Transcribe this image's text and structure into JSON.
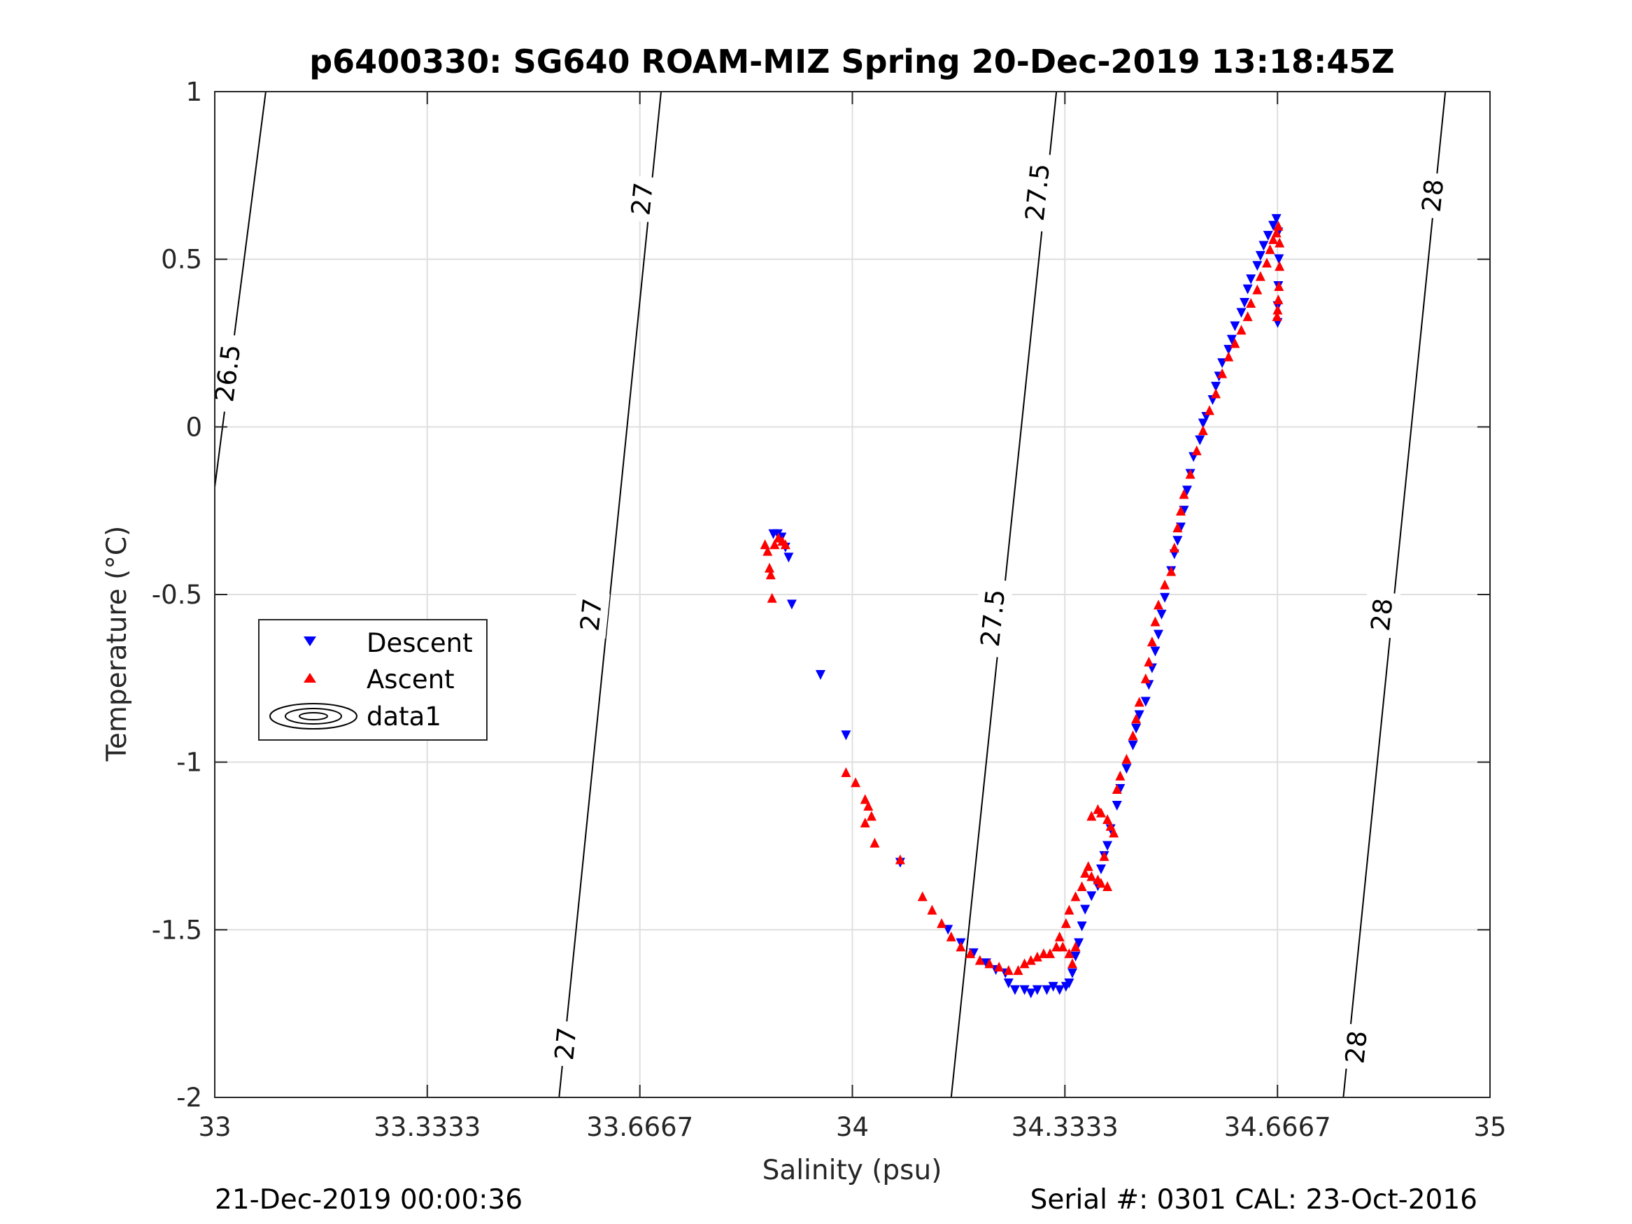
{
  "chart_data": {
    "type": "scatter",
    "title": "p6400330: SG640 ROAM-MIZ Spring 20-Dec-2019 13:18:45Z",
    "xlabel": "Salinity (psu)",
    "ylabel": "Temperature (°C)",
    "xlim": [
      33,
      35
    ],
    "ylim": [
      -2,
      1
    ],
    "xticks": [
      33,
      33.3333,
      33.6667,
      34,
      34.3333,
      34.6667,
      35
    ],
    "xtick_labels": [
      "33",
      "33.3333",
      "33.6667",
      "34",
      "34.3333",
      "34.6667",
      "35"
    ],
    "yticks": [
      -2,
      -1.5,
      -1,
      -0.5,
      0,
      0.5,
      1
    ],
    "ytick_labels": [
      "-2",
      "-1.5",
      "-1",
      "-0.5",
      "0",
      "0.5",
      "1"
    ],
    "grid": true,
    "legend_position": "middle-left",
    "footer_left": "21-Dec-2019 00:00:36",
    "footer_right": "Serial #: 0301  CAL: 23-Oct-2016",
    "density_contours": [
      {
        "label": "26.5",
        "points": [
          [
            33.0,
            -0.18
          ],
          [
            33.08,
            1.0
          ]
        ],
        "label_at": [
          33.02,
          0.16
        ]
      },
      {
        "label": "27",
        "points": [
          [
            33.54,
            -2.0
          ],
          [
            33.7,
            1.0
          ]
        ],
        "label_at": [
          [
            33.67,
            0.68
          ],
          [
            33.59,
            -0.56
          ],
          [
            33.55,
            -1.84
          ]
        ]
      },
      {
        "label": "27.5",
        "points": [
          [
            34.155,
            -2.0
          ],
          [
            34.32,
            1.0
          ]
        ],
        "label_at": [
          [
            34.29,
            0.7
          ],
          [
            34.22,
            -0.57
          ]
        ]
      },
      {
        "label": "28",
        "points": [
          [
            34.77,
            -2.0
          ],
          [
            34.93,
            1.0
          ]
        ],
        "label_at": [
          [
            34.91,
            0.69
          ],
          [
            34.83,
            -0.56
          ],
          [
            34.79,
            -1.85
          ]
        ]
      }
    ],
    "series": [
      {
        "name": "Descent",
        "marker": "triangle-down",
        "color": "#0000ff",
        "points": [
          [
            33.876,
            -0.32
          ],
          [
            33.883,
            -0.32
          ],
          [
            33.889,
            -0.33
          ],
          [
            33.895,
            -0.36
          ],
          [
            33.9,
            -0.39
          ],
          [
            33.905,
            -0.53
          ],
          [
            33.95,
            -0.74
          ],
          [
            33.99,
            -0.92
          ],
          [
            34.075,
            -1.3
          ],
          [
            34.15,
            -1.5
          ],
          [
            34.17,
            -1.54
          ],
          [
            34.19,
            -1.57
          ],
          [
            34.21,
            -1.6
          ],
          [
            34.225,
            -1.62
          ],
          [
            34.24,
            -1.63
          ],
          [
            34.245,
            -1.66
          ],
          [
            34.255,
            -1.68
          ],
          [
            34.27,
            -1.68
          ],
          [
            34.28,
            -1.69
          ],
          [
            34.29,
            -1.68
          ],
          [
            34.305,
            -1.68
          ],
          [
            34.315,
            -1.67
          ],
          [
            34.325,
            -1.68
          ],
          [
            34.335,
            -1.67
          ],
          [
            34.34,
            -1.66
          ],
          [
            34.345,
            -1.63
          ],
          [
            34.35,
            -1.58
          ],
          [
            34.355,
            -1.54
          ],
          [
            34.36,
            -1.49
          ],
          [
            34.365,
            -1.44
          ],
          [
            34.375,
            -1.4
          ],
          [
            34.385,
            -1.37
          ],
          [
            34.39,
            -1.32
          ],
          [
            34.395,
            -1.28
          ],
          [
            34.4,
            -1.25
          ],
          [
            34.405,
            -1.2
          ],
          [
            34.415,
            -1.13
          ],
          [
            34.42,
            -1.08
          ],
          [
            34.43,
            -1.02
          ],
          [
            34.44,
            -0.95
          ],
          [
            34.445,
            -0.9
          ],
          [
            34.45,
            -0.86
          ],
          [
            34.46,
            -0.82
          ],
          [
            34.465,
            -0.77
          ],
          [
            34.47,
            -0.72
          ],
          [
            34.475,
            -0.67
          ],
          [
            34.48,
            -0.62
          ],
          [
            34.485,
            -0.56
          ],
          [
            34.49,
            -0.51
          ],
          [
            34.5,
            -0.43
          ],
          [
            34.505,
            -0.38
          ],
          [
            34.51,
            -0.34
          ],
          [
            34.515,
            -0.3
          ],
          [
            34.52,
            -0.25
          ],
          [
            34.525,
            -0.19
          ],
          [
            34.53,
            -0.14
          ],
          [
            34.535,
            -0.09
          ],
          [
            34.545,
            -0.04
          ],
          [
            34.55,
            0.01
          ],
          [
            34.555,
            0.03
          ],
          [
            34.565,
            0.08
          ],
          [
            34.57,
            0.12
          ],
          [
            34.575,
            0.15
          ],
          [
            34.58,
            0.19
          ],
          [
            34.59,
            0.23
          ],
          [
            34.595,
            0.26
          ],
          [
            34.6,
            0.3
          ],
          [
            34.61,
            0.34
          ],
          [
            34.615,
            0.37
          ],
          [
            34.62,
            0.41
          ],
          [
            34.625,
            0.44
          ],
          [
            34.635,
            0.48
          ],
          [
            34.64,
            0.51
          ],
          [
            34.645,
            0.54
          ],
          [
            34.652,
            0.57
          ],
          [
            34.66,
            0.6
          ],
          [
            34.665,
            0.62
          ],
          [
            34.668,
            0.58
          ],
          [
            34.669,
            0.5
          ],
          [
            34.668,
            0.42
          ],
          [
            34.667,
            0.36
          ],
          [
            34.667,
            0.31
          ]
        ]
      },
      {
        "name": "Ascent",
        "marker": "triangle-up",
        "color": "#ff0000",
        "points": [
          [
            33.863,
            -0.35
          ],
          [
            33.867,
            -0.37
          ],
          [
            33.87,
            -0.42
          ],
          [
            33.872,
            -0.44
          ],
          [
            33.874,
            -0.51
          ],
          [
            33.878,
            -0.35
          ],
          [
            33.884,
            -0.33
          ],
          [
            33.89,
            -0.34
          ],
          [
            33.895,
            -0.35
          ],
          [
            33.99,
            -1.03
          ],
          [
            34.005,
            -1.06
          ],
          [
            34.02,
            -1.11
          ],
          [
            34.025,
            -1.13
          ],
          [
            34.03,
            -1.16
          ],
          [
            34.02,
            -1.18
          ],
          [
            34.035,
            -1.24
          ],
          [
            34.075,
            -1.29
          ],
          [
            34.11,
            -1.4
          ],
          [
            34.125,
            -1.44
          ],
          [
            34.14,
            -1.48
          ],
          [
            34.155,
            -1.52
          ],
          [
            34.17,
            -1.55
          ],
          [
            34.185,
            -1.57
          ],
          [
            34.2,
            -1.59
          ],
          [
            34.215,
            -1.6
          ],
          [
            34.23,
            -1.61
          ],
          [
            34.245,
            -1.62
          ],
          [
            34.26,
            -1.62
          ],
          [
            34.27,
            -1.6
          ],
          [
            34.28,
            -1.59
          ],
          [
            34.29,
            -1.58
          ],
          [
            34.3,
            -1.57
          ],
          [
            34.31,
            -1.57
          ],
          [
            34.32,
            -1.55
          ],
          [
            34.325,
            -1.52
          ],
          [
            34.33,
            -1.55
          ],
          [
            34.335,
            -1.48
          ],
          [
            34.34,
            -1.44
          ],
          [
            34.34,
            -1.57
          ],
          [
            34.345,
            -1.6
          ],
          [
            34.35,
            -1.55
          ],
          [
            34.35,
            -1.4
          ],
          [
            34.36,
            -1.37
          ],
          [
            34.365,
            -1.33
          ],
          [
            34.37,
            -1.31
          ],
          [
            34.375,
            -1.34
          ],
          [
            34.385,
            -1.35
          ],
          [
            34.39,
            -1.36
          ],
          [
            34.4,
            -1.37
          ],
          [
            34.375,
            -1.16
          ],
          [
            34.385,
            -1.14
          ],
          [
            34.39,
            -1.15
          ],
          [
            34.4,
            -1.17
          ],
          [
            34.405,
            -1.19
          ],
          [
            34.41,
            -1.21
          ],
          [
            34.395,
            -1.28
          ],
          [
            34.415,
            -1.08
          ],
          [
            34.42,
            -1.04
          ],
          [
            34.43,
            -0.99
          ],
          [
            34.44,
            -0.92
          ],
          [
            34.445,
            -0.87
          ],
          [
            34.45,
            -0.82
          ],
          [
            34.46,
            -0.75
          ],
          [
            34.465,
            -0.7
          ],
          [
            34.47,
            -0.64
          ],
          [
            34.475,
            -0.58
          ],
          [
            34.48,
            -0.53
          ],
          [
            34.49,
            -0.47
          ],
          [
            34.5,
            -0.43
          ],
          [
            34.505,
            -0.36
          ],
          [
            34.51,
            -0.3
          ],
          [
            34.515,
            -0.25
          ],
          [
            34.52,
            -0.2
          ],
          [
            34.53,
            -0.14
          ],
          [
            34.54,
            -0.07
          ],
          [
            34.55,
            -0.01
          ],
          [
            34.56,
            0.05
          ],
          [
            34.57,
            0.1
          ],
          [
            34.58,
            0.16
          ],
          [
            34.59,
            0.21
          ],
          [
            34.6,
            0.25
          ],
          [
            34.61,
            0.29
          ],
          [
            34.62,
            0.33
          ],
          [
            34.625,
            0.37
          ],
          [
            34.635,
            0.41
          ],
          [
            34.64,
            0.45
          ],
          [
            34.65,
            0.49
          ],
          [
            34.655,
            0.53
          ],
          [
            34.66,
            0.56
          ],
          [
            34.665,
            0.58
          ],
          [
            34.668,
            0.6
          ],
          [
            34.67,
            0.55
          ],
          [
            34.67,
            0.48
          ],
          [
            34.669,
            0.42
          ],
          [
            34.668,
            0.38
          ],
          [
            34.667,
            0.35
          ],
          [
            34.666,
            0.33
          ]
        ]
      }
    ],
    "legend": [
      {
        "label": "Descent",
        "marker": "triangle-down",
        "color": "#0000ff"
      },
      {
        "label": "Ascent",
        "marker": "triangle-up",
        "color": "#ff0000"
      },
      {
        "label": "data1",
        "marker": "contour",
        "color": "#000000"
      }
    ]
  }
}
